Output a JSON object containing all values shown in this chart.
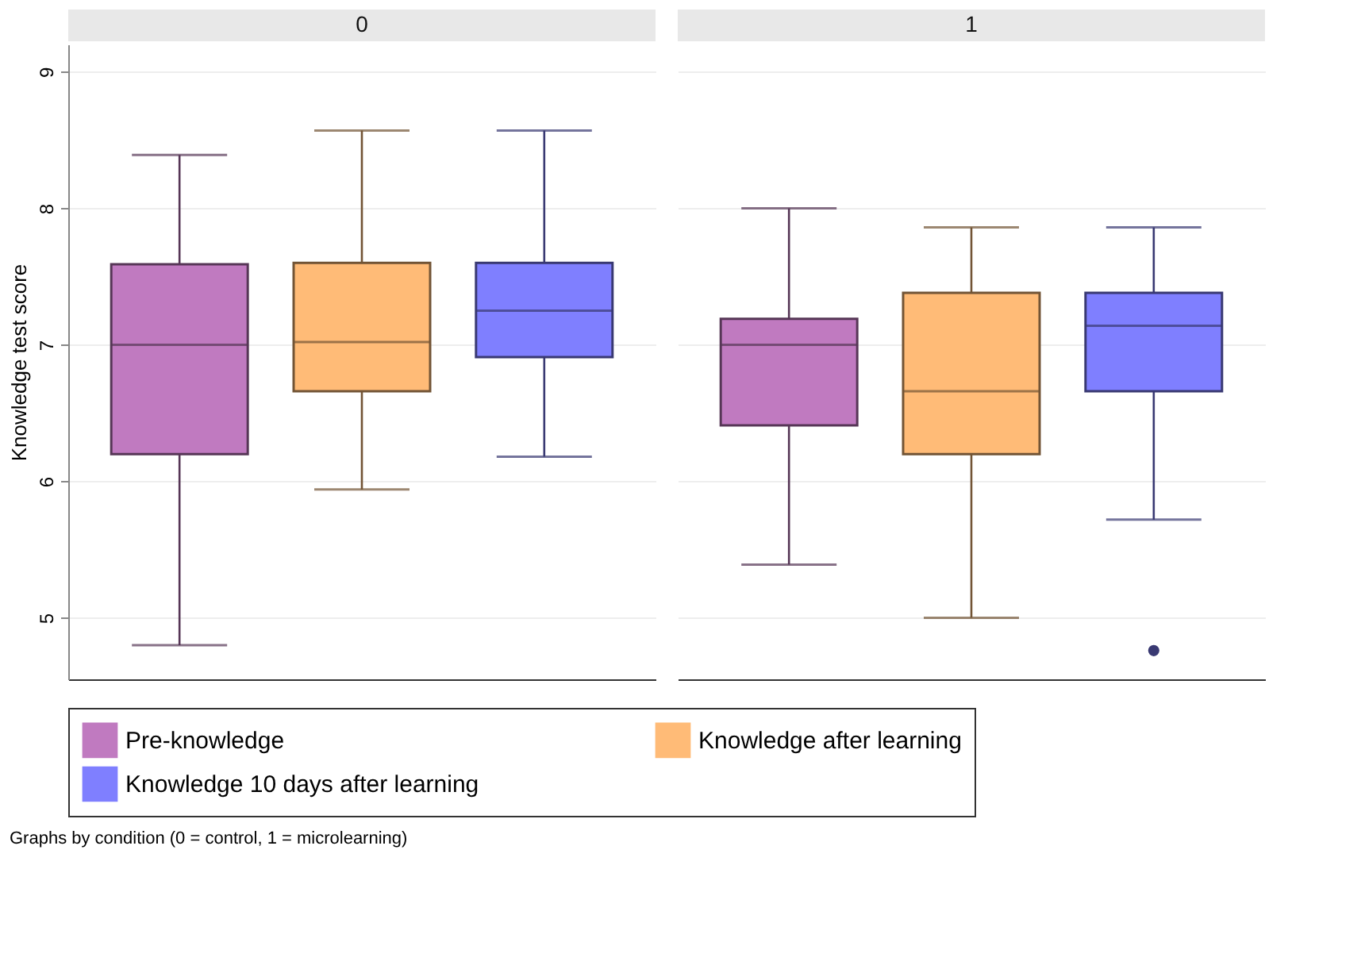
{
  "chart_data": {
    "type": "box",
    "ylabel": "Knowledge test score",
    "categories": [
      "0",
      "1"
    ],
    "ylim": [
      4.55,
      9.2
    ],
    "yticks": [
      5,
      6,
      7,
      8,
      9
    ],
    "grid": "y",
    "legend": "bottom",
    "annotations": [
      "Graphs by condition (0 = control, 1 = microlearning)"
    ],
    "series": [
      {
        "name": "Pre-knowledge",
        "color": "#c07ac0",
        "boxes": [
          {
            "low": 4.8,
            "q1": 6.2,
            "median": 7.0,
            "q3": 7.59,
            "high": 8.39
          },
          {
            "low": 5.39,
            "q1": 6.41,
            "median": 7.0,
            "q3": 7.19,
            "high": 8.0
          }
        ]
      },
      {
        "name": "Knowledge after learning",
        "color": "#ffbb77",
        "boxes": [
          {
            "low": 5.94,
            "q1": 6.66,
            "median": 7.02,
            "q3": 7.6,
            "high": 8.57
          },
          {
            "low": 5.0,
            "q1": 6.2,
            "median": 6.66,
            "q3": 7.38,
            "high": 7.86
          }
        ]
      },
      {
        "name": "Knowledge 10 days after learning",
        "color": "#7f7fff",
        "boxes": [
          {
            "low": 6.18,
            "q1": 6.91,
            "median": 7.25,
            "q3": 7.6,
            "high": 8.57
          },
          {
            "low": 5.72,
            "q1": 6.66,
            "median": 7.14,
            "q3": 7.38,
            "high": 7.86,
            "outliers": [
              4.76
            ]
          }
        ]
      }
    ]
  }
}
